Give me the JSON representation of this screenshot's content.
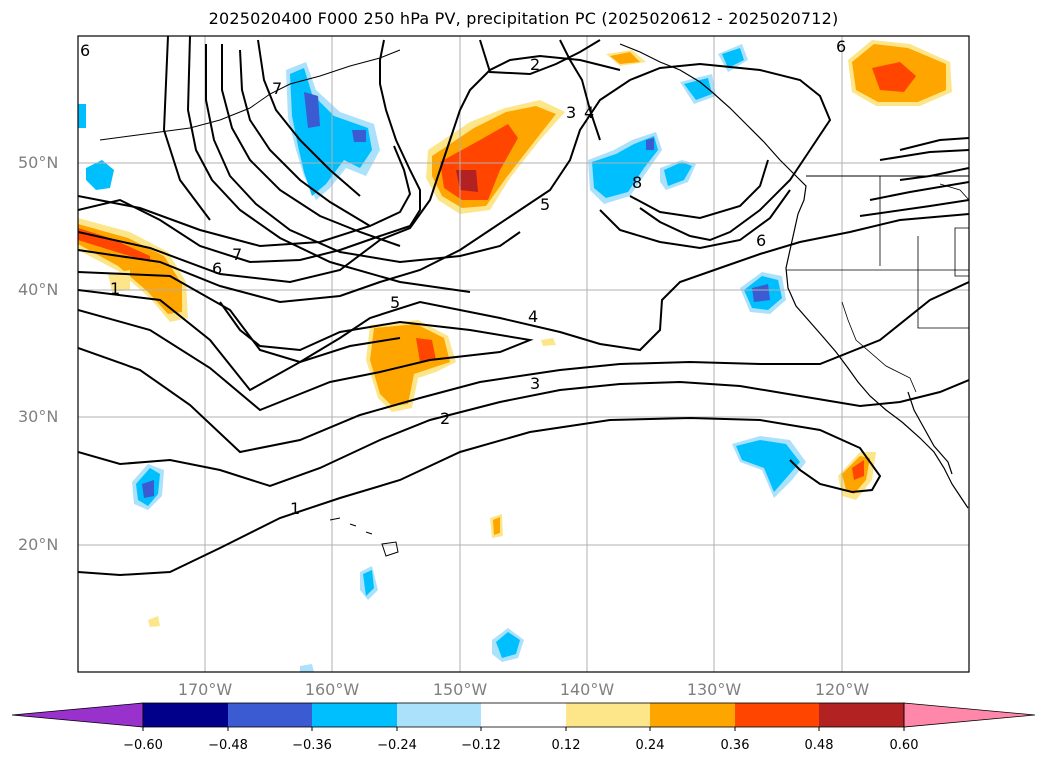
{
  "title": "2025020400 F000 250 hPa PV, precipitation PC (2025020612 - 2025020712)",
  "lat_labels": [
    "50°N",
    "40°N",
    "30°N",
    "20°N"
  ],
  "lon_labels": [
    "170°W",
    "160°W",
    "150°W",
    "140°W",
    "130°W",
    "120°W"
  ],
  "contour_labels": [
    "1",
    "2",
    "2",
    "3",
    "3",
    "4",
    "4",
    "5",
    "5",
    "6",
    "6",
    "6",
    "6",
    "7",
    "7",
    "8",
    "1"
  ],
  "colorbar": {
    "ticks": [
      "−0.60",
      "−0.48",
      "−0.36",
      "−0.24",
      "−0.12",
      "0.12",
      "0.24",
      "0.36",
      "0.48",
      "0.60"
    ],
    "colors": [
      "#9932cc",
      "#00008b",
      "#3a5bd1",
      "#00bfff",
      "#abe1fa",
      "#ffffff",
      "#fde68a",
      "#ffa500",
      "#ff4500",
      "#b22222",
      "#ff88aa"
    ]
  },
  "fill_colors": {
    "neg1": "#abe1fa",
    "neg2": "#00bfff",
    "neg3": "#3a5bd1",
    "pos1": "#fde68a",
    "pos2": "#ffa500",
    "pos3": "#ff4500",
    "pos4": "#b22222"
  }
}
